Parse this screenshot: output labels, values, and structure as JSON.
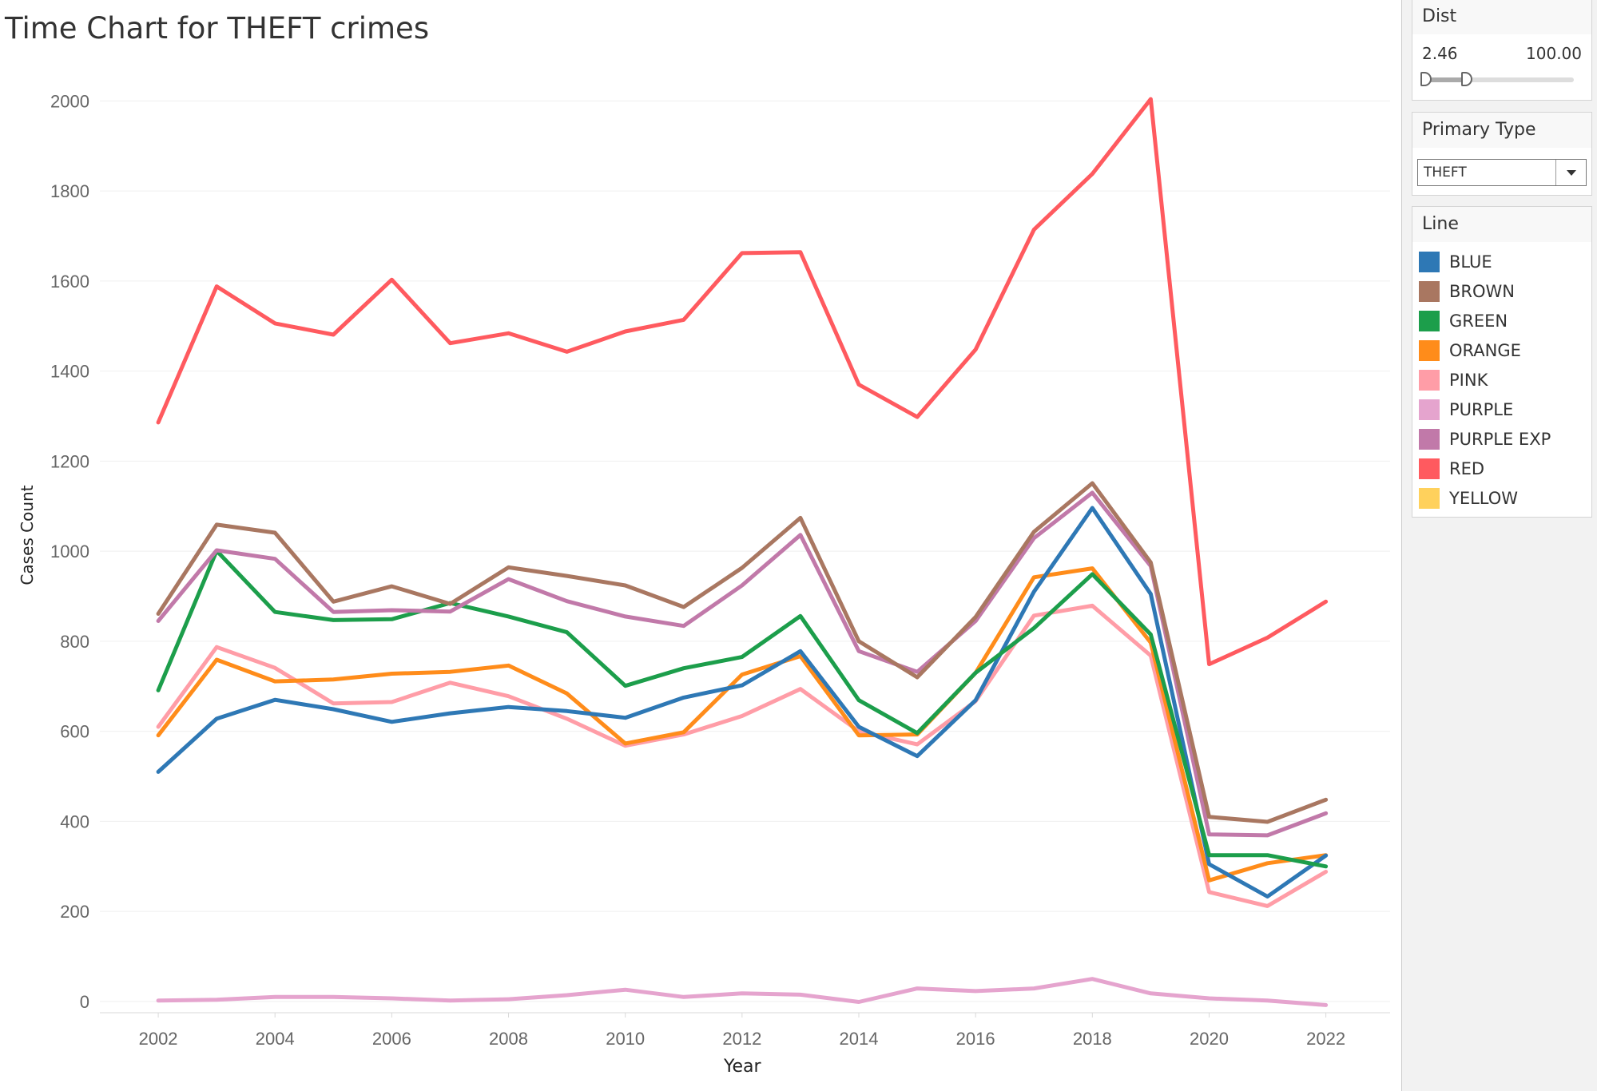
{
  "chart_data": {
    "type": "line",
    "title": "Time Chart for THEFT crimes",
    "xlabel": "Year",
    "ylabel": "Cases Count",
    "x": [
      2002,
      2003,
      2004,
      2005,
      2006,
      2007,
      2008,
      2009,
      2010,
      2011,
      2012,
      2013,
      2014,
      2015,
      2016,
      2017,
      2018,
      2019,
      2020,
      2021,
      2022
    ],
    "xticks": [
      2002,
      2004,
      2006,
      2008,
      2010,
      2012,
      2014,
      2016,
      2018,
      2020,
      2022
    ],
    "yticks": [
      0,
      200,
      400,
      600,
      800,
      1000,
      1200,
      1400,
      1600,
      1800,
      2000
    ],
    "xlim": [
      2001,
      2023.1
    ],
    "ylim": [
      -25,
      2100
    ],
    "grid": true,
    "series": [
      {
        "name": "RED",
        "color": "#ff5a5f",
        "values": [
          1286,
          1588,
          1506,
          1481,
          1603,
          1462,
          1484,
          1443,
          1488,
          1514,
          1662,
          1664,
          1370,
          1298,
          1448,
          1714,
          1838,
          2004,
          749,
          808,
          888
        ]
      },
      {
        "name": "PINK",
        "color": "#ff9da7",
        "values": [
          610,
          787,
          741,
          662,
          665,
          708,
          678,
          628,
          568,
          593,
          634,
          694,
          600,
          571,
          667,
          857,
          879,
          768,
          243,
          212,
          288
        ]
      },
      {
        "name": "ORANGE",
        "color": "#ff8c1a",
        "values": [
          591,
          759,
          711,
          715,
          728,
          732,
          746,
          684,
          573,
          598,
          726,
          767,
          591,
          593,
          730,
          942,
          962,
          797,
          269,
          307,
          325
        ]
      },
      {
        "name": "BLUE",
        "color": "#2e78b5",
        "values": [
          510,
          628,
          670,
          649,
          621,
          640,
          654,
          645,
          630,
          675,
          702,
          778,
          610,
          545,
          669,
          910,
          1096,
          905,
          305,
          233,
          324
        ]
      },
      {
        "name": "GREEN",
        "color": "#1c9e4b",
        "values": [
          691,
          1001,
          865,
          847,
          849,
          885,
          855,
          820,
          701,
          740,
          765,
          856,
          669,
          596,
          730,
          829,
          949,
          815,
          325,
          325,
          300
        ]
      },
      {
        "name": "PURPLE EXP",
        "color": "#c179a9",
        "values": [
          845,
          1002,
          983,
          865,
          869,
          866,
          938,
          889,
          855,
          834,
          924,
          1036,
          778,
          732,
          845,
          1029,
          1130,
          967,
          371,
          369,
          418
        ]
      },
      {
        "name": "BROWN",
        "color": "#a97761",
        "values": [
          861,
          1059,
          1041,
          888,
          922,
          883,
          964,
          945,
          924,
          876,
          963,
          1074,
          800,
          720,
          854,
          1043,
          1151,
          975,
          410,
          399,
          448
        ]
      },
      {
        "name": "PURPLE",
        "color": "#e5a4ce",
        "values": [
          2,
          4,
          10,
          10,
          7,
          2,
          5,
          14,
          26,
          10,
          18,
          15,
          -1,
          29,
          23,
          29,
          50,
          18,
          7,
          2,
          -8
        ]
      }
    ]
  },
  "sidebar": {
    "dist": {
      "title": "Dist",
      "min_label": "2.46",
      "max_label": "100.00",
      "range_low": 0.0,
      "range_high": 0.27
    },
    "primary_type": {
      "title": "Primary Type",
      "value": "THEFT"
    },
    "legend": {
      "title": "Line",
      "items": [
        {
          "label": "BLUE",
          "color": "#2e78b5"
        },
        {
          "label": "BROWN",
          "color": "#a97761"
        },
        {
          "label": "GREEN",
          "color": "#1c9e4b"
        },
        {
          "label": "ORANGE",
          "color": "#ff8c1a"
        },
        {
          "label": "PINK",
          "color": "#ff9da7"
        },
        {
          "label": "PURPLE",
          "color": "#e5a4ce"
        },
        {
          "label": "PURPLE EXP",
          "color": "#c179a9"
        },
        {
          "label": "RED",
          "color": "#ff5a5f"
        },
        {
          "label": "YELLOW",
          "color": "#ffd15c"
        }
      ]
    }
  }
}
